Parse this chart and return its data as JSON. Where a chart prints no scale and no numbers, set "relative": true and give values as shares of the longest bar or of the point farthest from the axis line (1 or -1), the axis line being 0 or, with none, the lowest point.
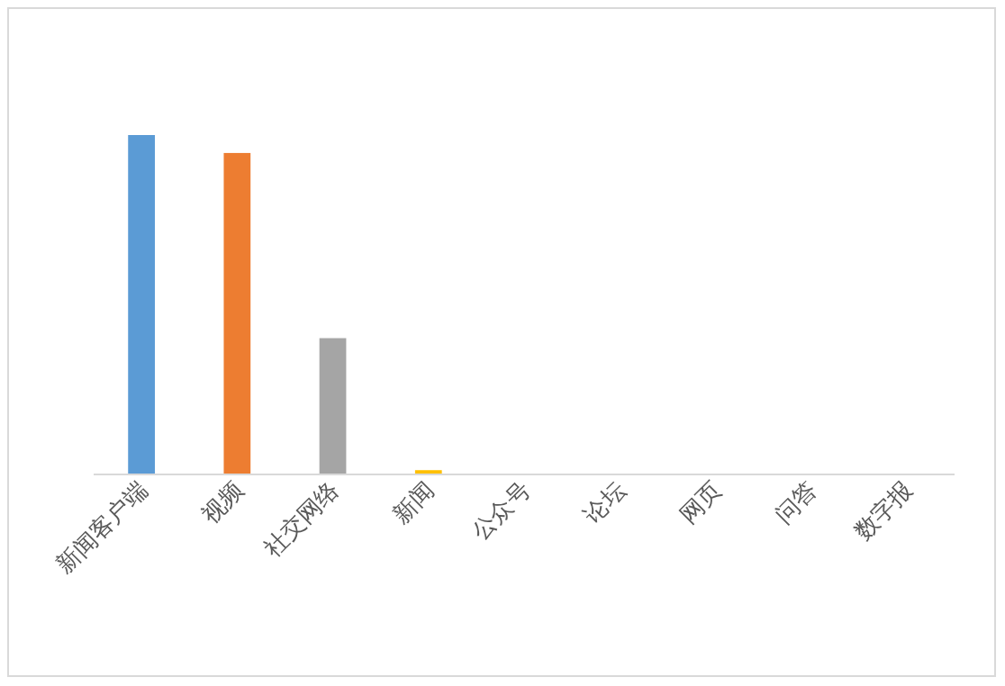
{
  "chart_data": {
    "type": "bar",
    "relative": true,
    "categories": [
      "新闻客户端",
      "视频",
      "社交网络",
      "新闻",
      "公众号",
      "论坛",
      "网页",
      "问答",
      "数字报"
    ],
    "values": [
      1,
      0.947,
      0.4,
      0.01,
      0,
      0,
      0,
      0,
      0
    ],
    "colors": [
      "#5b9bd5",
      "#ed7d31",
      "#a5a5a5",
      "#ffc000",
      "#4472c4",
      "#70ad47",
      "#255e91",
      "#9e480e",
      "#636363"
    ]
  }
}
